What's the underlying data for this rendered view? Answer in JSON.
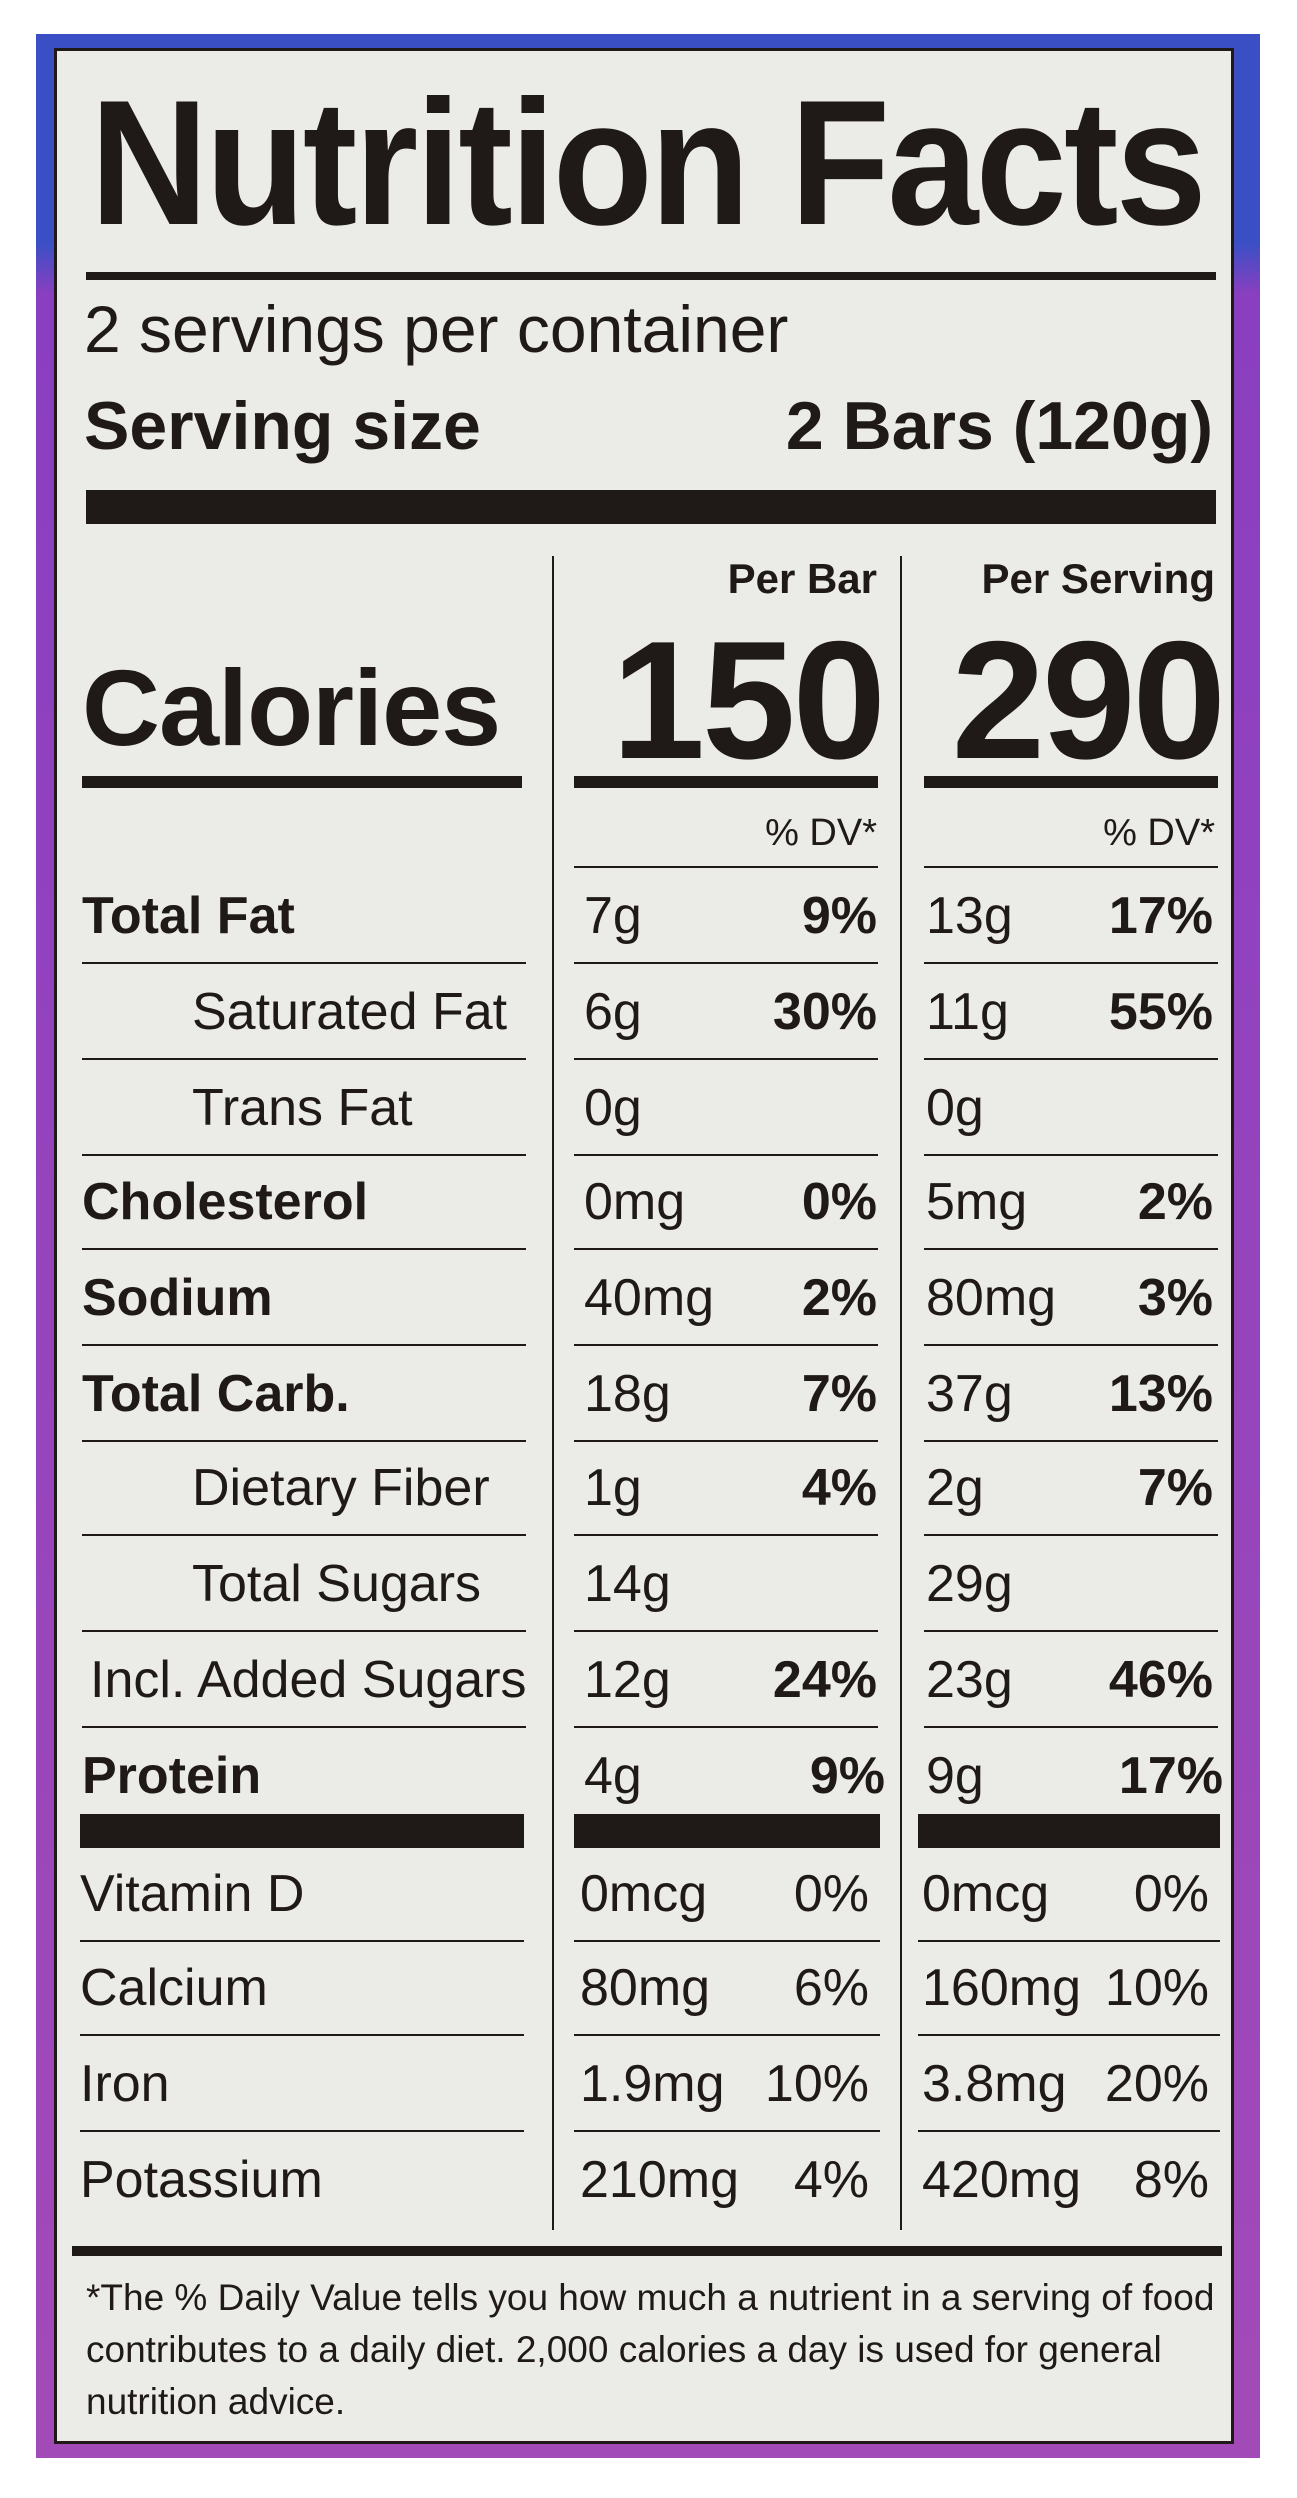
{
  "title": "Nutrition Facts",
  "servings_per_container": "2 servings per container",
  "serving_size_label": "Serving size",
  "serving_size_value": "2 Bars (120g)",
  "columns": {
    "per_bar": "Per Bar",
    "per_serving": "Per Serving"
  },
  "calories": {
    "label": "Calories",
    "per_bar": "150",
    "per_serving": "290"
  },
  "dv_header": "% DV*",
  "nutrients": [
    {
      "name": "Total Fat",
      "bold": true,
      "bar_amount": "7g",
      "bar_dv": "9%",
      "serving_amount": "13g",
      "serving_dv": "17%"
    },
    {
      "name": "Saturated Fat",
      "bold": false,
      "bar_amount": "6g",
      "bar_dv": "30%",
      "serving_amount": "11g",
      "serving_dv": "55%"
    },
    {
      "name": "Trans Fat",
      "bold": false,
      "bar_amount": "0g",
      "bar_dv": "",
      "serving_amount": "0g",
      "serving_dv": ""
    },
    {
      "name": "Cholesterol",
      "bold": true,
      "bar_amount": "0mg",
      "bar_dv": "0%",
      "serving_amount": "5mg",
      "serving_dv": "2%"
    },
    {
      "name": "Sodium",
      "bold": true,
      "bar_amount": "40mg",
      "bar_dv": "2%",
      "serving_amount": "80mg",
      "serving_dv": "3%"
    },
    {
      "name": "Total Carb.",
      "bold": true,
      "bar_amount": "18g",
      "bar_dv": "7%",
      "serving_amount": "37g",
      "serving_dv": "13%"
    },
    {
      "name": "Dietary Fiber",
      "bold": false,
      "bar_amount": "1g",
      "bar_dv": "4%",
      "serving_amount": "2g",
      "serving_dv": "7%"
    },
    {
      "name": "Total Sugars",
      "bold": false,
      "bar_amount": "14g",
      "bar_dv": "",
      "serving_amount": "29g",
      "serving_dv": ""
    },
    {
      "name": "Incl. Added Sugars",
      "bold": false,
      "bar_amount": "12g",
      "bar_dv": "24%",
      "serving_amount": "23g",
      "serving_dv": "46%"
    },
    {
      "name": "Protein",
      "bold": true,
      "bar_amount": "4g",
      "bar_dv": "9%",
      "serving_amount": "9g",
      "serving_dv": "17%"
    }
  ],
  "vitamins": [
    {
      "name": "Vitamin D",
      "bar_amount": "0mcg",
      "bar_dv": "0%",
      "serving_amount": "0mcg",
      "serving_dv": "0%"
    },
    {
      "name": "Calcium",
      "bar_amount": "80mg",
      "bar_dv": "6%",
      "serving_amount": "160mg",
      "serving_dv": "10%"
    },
    {
      "name": "Iron",
      "bar_amount": "1.9mg",
      "bar_dv": "10%",
      "serving_amount": "3.8mg",
      "serving_dv": "20%"
    },
    {
      "name": "Potassium",
      "bar_amount": "210mg",
      "bar_dv": "4%",
      "serving_amount": "420mg",
      "serving_dv": "8%"
    }
  ],
  "footnote": "*The % Daily Value tells you how much a nutrient in a serving of food contributes to a daily diet. 2,000 calories a day is used for general nutrition advice.",
  "colors": {
    "ink": "#1f1a17",
    "label_bg": "#ebebe8",
    "frame_top": "#3b4fc4",
    "frame_bottom": "#a24ab8"
  }
}
